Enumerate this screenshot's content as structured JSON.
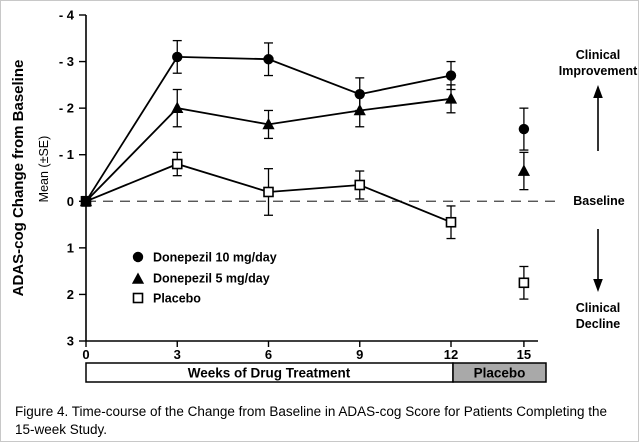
{
  "figure": {
    "caption": "Figure 4. Time-course of the Change from Baseline in ADAS-cog Score for Patients Completing the 15-week Study."
  },
  "annotations": {
    "clinical_improvement": [
      "Clinical",
      "Improvement"
    ],
    "baseline": "Baseline",
    "clinical_decline": [
      "Clinical",
      "Decline"
    ]
  },
  "labels": {
    "placebo_bar": "Placebo"
  },
  "chart_data": {
    "type": "line",
    "ylabel": "ADAS-cog Change from Baseline",
    "ylabel_sub": "Mean (±SE)",
    "xlabel": "Weeks of Drug Treatment",
    "y_axis_inverted": true,
    "ylim": [
      -4,
      3
    ],
    "y_ticks": [
      -4,
      -3,
      -2,
      -1,
      0,
      1,
      2,
      3
    ],
    "y_tick_labels": [
      "- 4",
      "- 3",
      "- 2",
      "- 1",
      "0",
      "1",
      "2",
      "3"
    ],
    "x_weeks": [
      0,
      3,
      6,
      9,
      12,
      15
    ],
    "x_tick_labels": [
      "0",
      "3",
      "6",
      "9",
      "12",
      "15"
    ],
    "baseline_value": 0,
    "treatment_period_weeks": [
      0,
      12
    ],
    "placebo_washout_week": 15,
    "legend_position": "lower-left-inside",
    "grid": false,
    "note": "Week 15 points follow placebo washout and are not connected to the treatment curves",
    "series": [
      {
        "name": "Donepezil 10 mg/day",
        "marker": "filled-circle",
        "values": [
          0,
          -3.1,
          -3.05,
          -2.3,
          -2.7,
          -1.55
        ],
        "se": [
          0.1,
          0.35,
          0.35,
          0.35,
          0.3,
          0.45
        ]
      },
      {
        "name": "Donepezil 5 mg/day",
        "marker": "filled-triangle",
        "values": [
          0,
          -2.0,
          -1.65,
          -1.95,
          -2.2,
          -0.65
        ],
        "se": [
          0.1,
          0.4,
          0.3,
          0.35,
          0.3,
          0.4
        ]
      },
      {
        "name": "Placebo",
        "marker": "open-square",
        "values": [
          0,
          -0.8,
          -0.2,
          -0.35,
          0.45,
          1.75
        ],
        "se": [
          0.1,
          0.25,
          0.5,
          0.3,
          0.35,
          0.35
        ]
      }
    ]
  }
}
